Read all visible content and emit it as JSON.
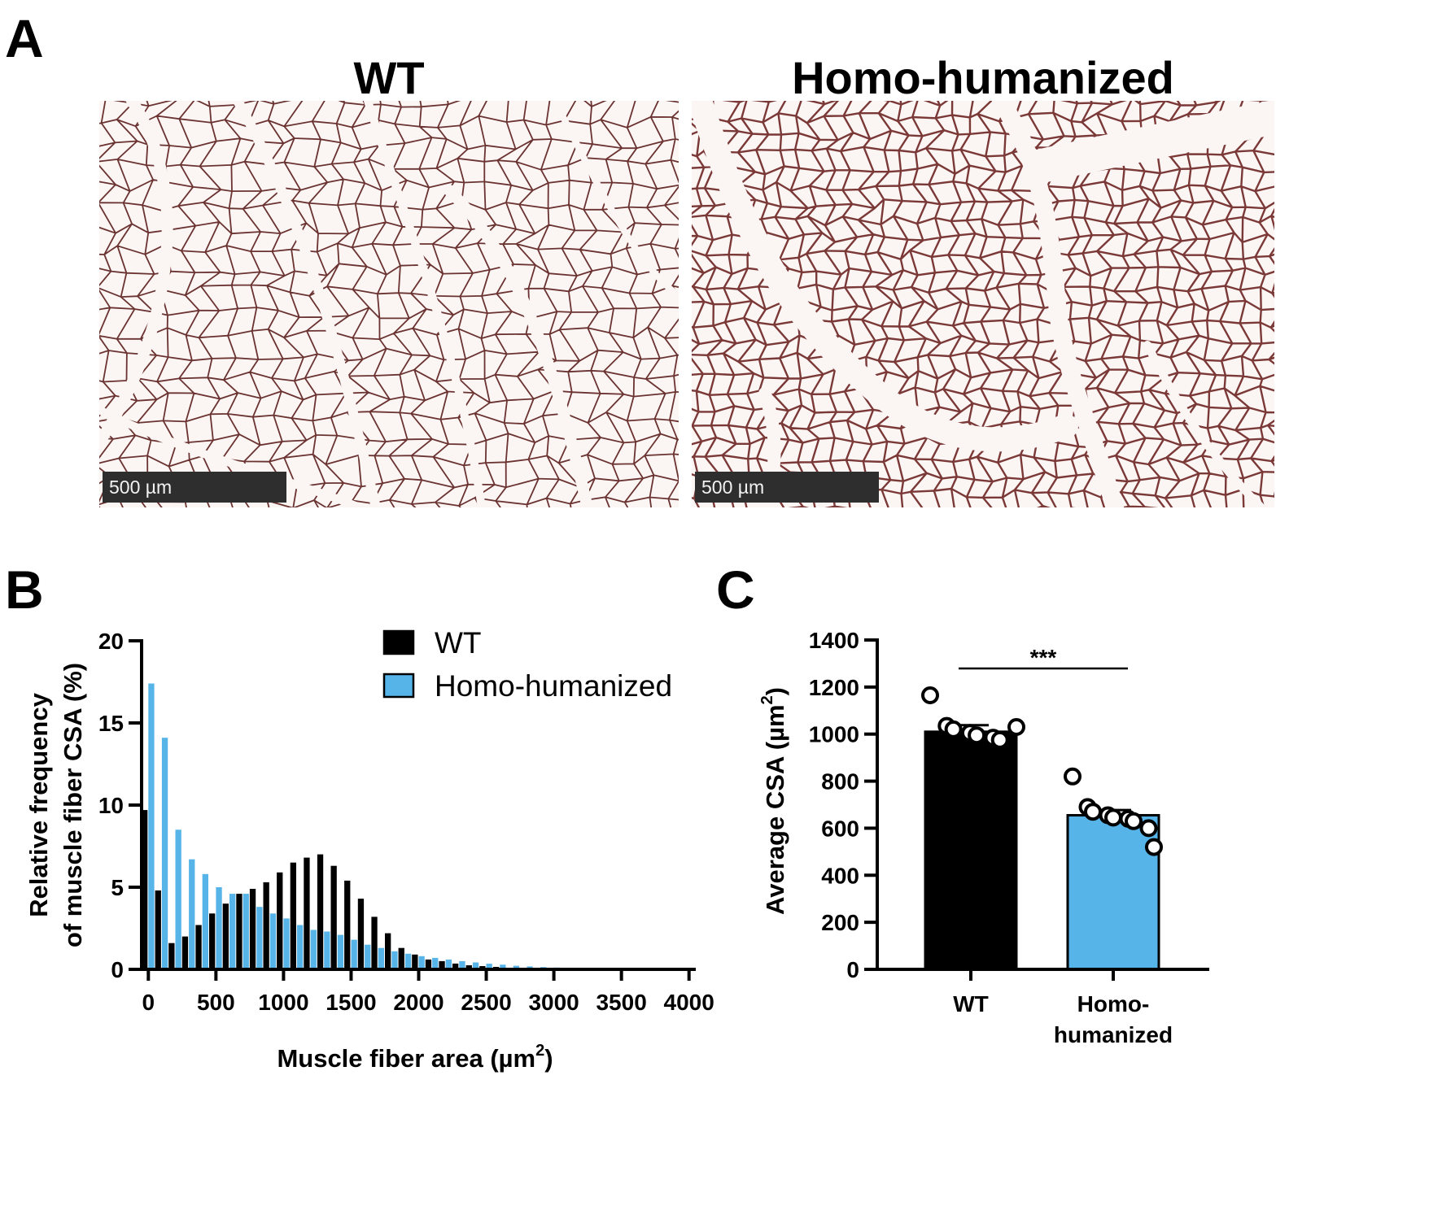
{
  "panels": {
    "a": "A",
    "b": "B",
    "c": "C"
  },
  "micrographs": [
    {
      "title": "WT",
      "scale_label": "500 µm",
      "stain_color": "#5a1e1c",
      "density": "normal"
    },
    {
      "title": "Homo-humanized",
      "scale_label": "500 µm",
      "stain_color": "#6b2422",
      "density": "dense"
    }
  ],
  "chart_data": [
    {
      "type": "bar",
      "panel": "B",
      "ylabel_lines": [
        "Relative frequency",
        "of muscle fiber CSA (%)"
      ],
      "xlabel": "Muscle fiber area (µm",
      "xlabel_sup": "2",
      "xlabel_close": ")",
      "ylim": [
        0,
        20
      ],
      "yticks": [
        0,
        5,
        10,
        15,
        20
      ],
      "xlim": [
        -50,
        4050
      ],
      "xticks": [
        0,
        500,
        1000,
        1500,
        2000,
        2500,
        3000,
        3500,
        4000
      ],
      "bin_width": 100,
      "x": [
        0,
        100,
        200,
        300,
        400,
        500,
        600,
        700,
        800,
        900,
        1000,
        1100,
        1200,
        1300,
        1400,
        1500,
        1600,
        1700,
        1800,
        1900,
        2000,
        2100,
        2200,
        2300,
        2400,
        2500,
        2600,
        2700,
        2800,
        2900,
        3000,
        3100,
        3200,
        3300,
        3400,
        3500,
        3600,
        3700,
        3800,
        3900,
        4000
      ],
      "series": [
        {
          "name": "WT",
          "color": "#000000",
          "values": [
            9.7,
            4.8,
            1.6,
            2.0,
            2.7,
            3.4,
            4.0,
            4.6,
            4.9,
            5.3,
            5.9,
            6.5,
            6.8,
            7.0,
            6.3,
            5.4,
            4.3,
            3.2,
            2.2,
            1.3,
            0.9,
            0.6,
            0.5,
            0.35,
            0.25,
            0.2,
            0.15,
            0.1,
            0.08,
            0.06,
            0.05,
            0.04,
            0.03,
            0.02,
            0.02,
            0.015,
            0.01,
            0.01,
            0.01,
            0.005,
            0.005
          ]
        },
        {
          "name": "Homo-humanized",
          "color": "#56b4e9",
          "values": [
            17.4,
            14.1,
            8.5,
            6.7,
            5.8,
            5.0,
            4.6,
            4.6,
            3.8,
            3.4,
            3.1,
            2.7,
            2.4,
            2.3,
            2.1,
            1.8,
            1.5,
            1.3,
            1.1,
            0.95,
            0.8,
            0.7,
            0.6,
            0.5,
            0.42,
            0.34,
            0.28,
            0.22,
            0.18,
            0.14,
            0.11,
            0.09,
            0.07,
            0.06,
            0.05,
            0.04,
            0.03,
            0.02,
            0.02,
            0.01,
            0.01
          ]
        }
      ],
      "legend": "top-right"
    },
    {
      "type": "bar",
      "panel": "C",
      "categories": [
        "WT",
        "Homo-humanized"
      ],
      "category_lines": [
        [
          "WT"
        ],
        [
          "Homo-",
          "humanized"
        ]
      ],
      "values": [
        1010,
        655
      ],
      "errors": [
        28,
        22
      ],
      "colors": [
        "#000000",
        "#56b4e9"
      ],
      "points": [
        [
          1165,
          1035,
          1020,
          1005,
          995,
          985,
          975,
          1030
        ],
        [
          820,
          690,
          670,
          655,
          645,
          640,
          630,
          600,
          520
        ]
      ],
      "ylabel": "Average CSA  (µm",
      "ylabel_sup": "2",
      "ylabel_close": ")",
      "ylim": [
        0,
        1400
      ],
      "yticks": [
        0,
        200,
        400,
        600,
        800,
        1000,
        1200,
        1400
      ],
      "significance": "***"
    }
  ]
}
